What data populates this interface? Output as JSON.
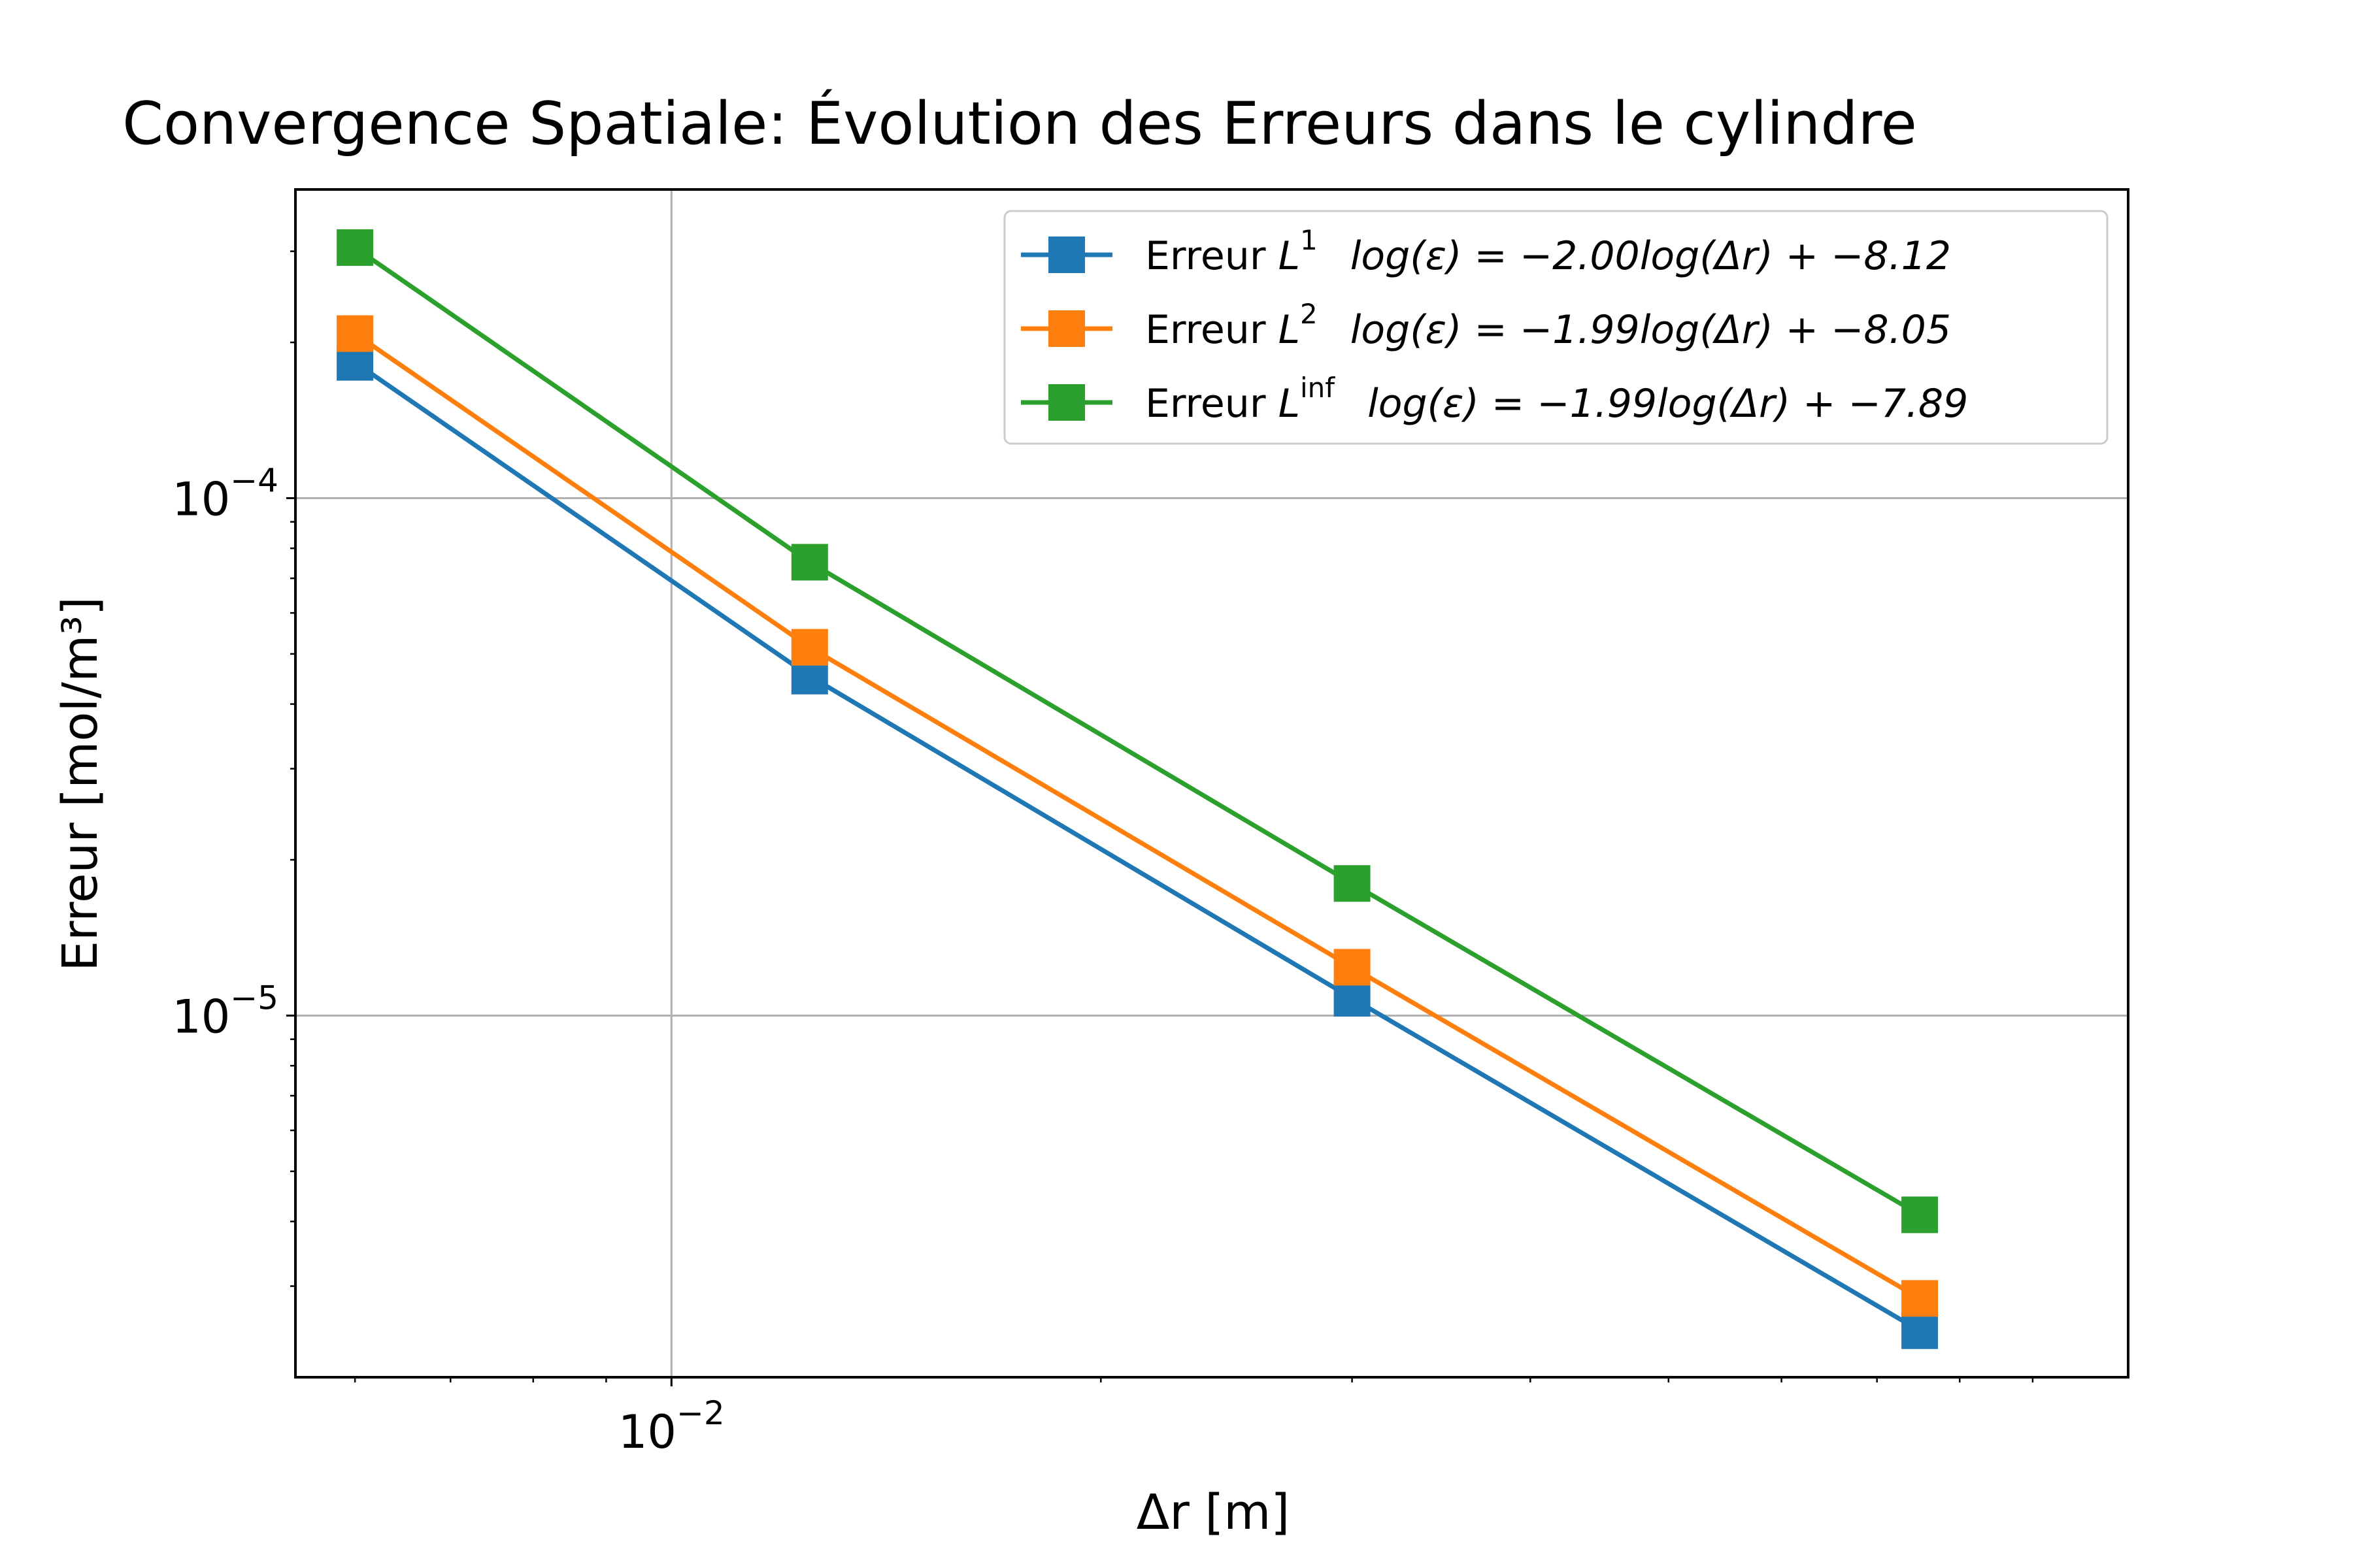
{
  "chart_data": {
    "type": "line",
    "title": "Convergence Spatiale: Évolution des Erreurs dans le cylindre",
    "xlabel": "Δr [m]",
    "ylabel": "Erreur [mol/m³]",
    "xscale": "log",
    "yscale": "log",
    "xlim": [
      0.00545,
      0.105
    ],
    "ylim": [
      2e-06,
      0.000395
    ],
    "grid": "major",
    "legend_position": "top-right",
    "x": [
      0.006,
      0.0125,
      0.03,
      0.075
    ],
    "series": [
      {
        "name": "Erreur L1",
        "legend_prefix": "Erreur ",
        "legend_sup": "1",
        "legend_eq": "log(ε) = −2.00log(Δr) + −8.12",
        "color": "#1f77b4",
        "values": [
          0.000183,
          4.53e-05,
          1.08e-05,
          2.46e-06
        ]
      },
      {
        "name": "Erreur L2",
        "legend_prefix": "Erreur ",
        "legend_sup": "2",
        "legend_eq": "log(ε) = −1.99log(Δr) + −8.05",
        "color": "#ff7f0e",
        "values": [
          0.000208,
          5.15e-05,
          1.24e-05,
          2.84e-06
        ]
      },
      {
        "name": "Erreur Linf",
        "legend_prefix": "Erreur ",
        "legend_sup": "inf",
        "legend_eq": "log(ε) = −1.99log(Δr) + −7.89",
        "color": "#2ca02c",
        "values": [
          0.000305,
          7.52e-05,
          1.8e-05,
          4.12e-06
        ]
      }
    ],
    "y_major_ticks": [
      {
        "value": 0.0001,
        "base": "10",
        "exp": "−4"
      },
      {
        "value": 1e-05,
        "base": "10",
        "exp": "−5"
      }
    ],
    "x_major_ticks": [
      {
        "value": 0.01,
        "base": "10",
        "exp": "−2"
      }
    ]
  }
}
